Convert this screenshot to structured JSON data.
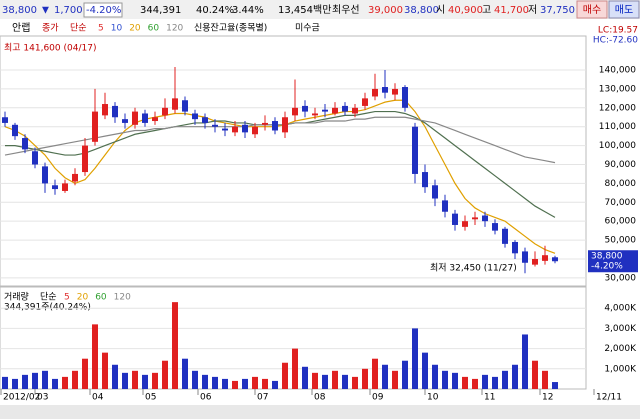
{
  "header": {
    "price": "38,800",
    "arrow": "▼",
    "change": "1,700",
    "change_pct": "-4.20%",
    "volume": "344,391",
    "vol_ratio": "40.24%",
    "turnover": "3.44%",
    "amount": "13,454백만",
    "best_label": "최우선",
    "best_ask": "39,000",
    "best_bid": "38,800",
    "open_label": "시",
    "open": "40,900",
    "high_label": "고",
    "high": "41,700",
    "low_label": "저",
    "low": "37,750",
    "buy": "매수",
    "sell": "매도"
  },
  "toolbar": {
    "name": "안랩",
    "price_type": "종가",
    "ma_type": "단순",
    "legend": [
      {
        "text": "5",
        "color": "#e03030"
      },
      {
        "text": "10",
        "color": "#3050d0"
      },
      {
        "text": "20",
        "color": "#e0a000"
      },
      {
        "text": "60",
        "color": "#30a030"
      },
      {
        "text": "120",
        "color": "#888888"
      }
    ],
    "credit": "신용잔고율(종목별)",
    "receivable": "미수금"
  },
  "chart_data": {
    "type": "candlestick",
    "annotations": {
      "high_note": "최고 141,600 (04/17)",
      "low_note": "최저 32,450 (11/27)",
      "lc": "LC:19.57",
      "hc": "HC:-72.60",
      "last_price": "38,800",
      "last_pct": "-4.20%"
    },
    "ylim": [
      25700,
      158000
    ],
    "yticks": [
      {
        "value": 30000,
        "label": "30,000"
      },
      {
        "value": 40000,
        "label": "40,000"
      },
      {
        "value": 50000,
        "label": "50,000"
      },
      {
        "value": 60000,
        "label": "60,000"
      },
      {
        "value": 70000,
        "label": "70,000"
      },
      {
        "value": 80000,
        "label": "80,000"
      },
      {
        "value": 90000,
        "label": "90,000"
      },
      {
        "value": 100000,
        "label": "100,000"
      },
      {
        "value": 110000,
        "label": "110,000"
      },
      {
        "value": 120000,
        "label": "120,000"
      },
      {
        "value": 130000,
        "label": "130,000"
      },
      {
        "value": 140000,
        "label": "140,000"
      }
    ],
    "open": [
      115000,
      111000,
      104000,
      97000,
      89000,
      79000,
      76000,
      81000,
      86000,
      102000,
      116000,
      121000,
      114000,
      111000,
      117000,
      113000,
      116000,
      119000,
      124000,
      117000,
      115000,
      111000,
      109000,
      107000,
      111000,
      106000,
      111000,
      113000,
      107000,
      116000,
      121000,
      116000,
      119000,
      117000,
      121000,
      117000,
      121000,
      126000,
      131000,
      127000,
      131000,
      110000,
      86000,
      79000,
      71000,
      64000,
      57000,
      61000,
      63000,
      59000,
      56000,
      49000,
      44000,
      37000,
      39000,
      40900
    ],
    "high": [
      118000,
      112000,
      106000,
      99000,
      91000,
      82000,
      82000,
      88000,
      104000,
      130000,
      128000,
      123000,
      117000,
      120000,
      119000,
      118000,
      125000,
      141600,
      126000,
      119000,
      117000,
      114000,
      112000,
      113000,
      113000,
      112000,
      116000,
      115000,
      118000,
      135000,
      124000,
      120000,
      122000,
      123000,
      123000,
      122000,
      128000,
      138000,
      140000,
      133000,
      132000,
      112000,
      90000,
      82000,
      74000,
      66000,
      63000,
      65000,
      65000,
      61000,
      57000,
      50000,
      46000,
      44000,
      47000,
      41700
    ],
    "low": [
      110000,
      103000,
      96000,
      88000,
      75000,
      74000,
      75000,
      79000,
      84000,
      100000,
      114000,
      112000,
      109000,
      109000,
      110000,
      111000,
      114000,
      117000,
      116000,
      111000,
      109000,
      107000,
      105000,
      105000,
      104000,
      104000,
      108000,
      106000,
      104000,
      113000,
      115000,
      114000,
      115000,
      116000,
      116000,
      115000,
      119000,
      124000,
      125000,
      124000,
      118000,
      80000,
      75000,
      68000,
      62000,
      55000,
      55000,
      58000,
      57000,
      53000,
      46000,
      40000,
      32450,
      36000,
      37000,
      37750
    ],
    "close": [
      112000,
      105000,
      98000,
      90000,
      80000,
      77000,
      80000,
      85000,
      100000,
      118000,
      122000,
      115000,
      112000,
      118000,
      112000,
      115000,
      120000,
      125000,
      118000,
      114000,
      112000,
      110000,
      108000,
      110000,
      107000,
      110000,
      112000,
      108000,
      115000,
      120000,
      118000,
      117000,
      118000,
      120000,
      118000,
      120000,
      125000,
      130000,
      128000,
      130000,
      120000,
      85000,
      78000,
      72000,
      65000,
      58000,
      60000,
      62000,
      60000,
      55000,
      48000,
      43000,
      38000,
      40000,
      42000,
      38800
    ],
    "up_color": "#e02020",
    "down_color": "#2030c0",
    "ma": [
      {
        "color": "#e0a000",
        "values": [
          110000,
          108000,
          105000,
          100000,
          95000,
          88000,
          83000,
          80000,
          82000,
          88000,
          95000,
          102000,
          108000,
          112000,
          114000,
          115000,
          116000,
          117000,
          117000,
          116000,
          115000,
          113000,
          112000,
          111000,
          110000,
          110000,
          110000,
          110000,
          111000,
          113000,
          114000,
          115000,
          116000,
          117000,
          118000,
          118000,
          119000,
          121000,
          123000,
          124000,
          124000,
          118000,
          110000,
          100000,
          90000,
          80000,
          72000,
          67000,
          64000,
          62000,
          60000,
          56000,
          52000,
          48000,
          45000,
          43000
        ]
      },
      {
        "color": "#507050",
        "values": [
          100000,
          100000,
          99000,
          98000,
          97000,
          96000,
          95000,
          95000,
          96000,
          98000,
          100000,
          102000,
          104000,
          106000,
          107000,
          108000,
          109000,
          110000,
          111000,
          112000,
          112000,
          113000,
          113000,
          112000,
          112000,
          111000,
          111000,
          111000,
          111000,
          112000,
          112000,
          113000,
          114000,
          115000,
          116000,
          116000,
          117000,
          118000,
          118000,
          118000,
          117000,
          115000,
          112000,
          108000,
          104000,
          100000,
          96000,
          92000,
          88000,
          84000,
          80000,
          76000,
          72000,
          68000,
          65000,
          62000
        ]
      },
      {
        "color": "#888888",
        "values": [
          95000,
          96000,
          97000,
          98000,
          99000,
          100000,
          101000,
          102000,
          103000,
          104000,
          105000,
          106000,
          107000,
          108000,
          108000,
          109000,
          109000,
          110000,
          110000,
          110000,
          110000,
          110000,
          110000,
          110000,
          110000,
          111000,
          111000,
          111000,
          111000,
          112000,
          112000,
          112000,
          113000,
          113000,
          113000,
          114000,
          114000,
          115000,
          115000,
          115000,
          115000,
          114000,
          113000,
          112000,
          110000,
          108000,
          106000,
          104000,
          102000,
          100000,
          98000,
          96000,
          94000,
          93000,
          92000,
          91000
        ]
      }
    ],
    "volume": {
      "title": "거래량",
      "ma_type": "단순",
      "legend": [
        {
          "text": "5",
          "color": "#e03030"
        },
        {
          "text": "20",
          "color": "#e0a000"
        },
        {
          "text": "60",
          "color": "#30a030"
        },
        {
          "text": "120",
          "color": "#888888"
        }
      ],
      "last": "344,391주(40.24%)",
      "ylim": [
        0,
        5050
      ],
      "yticks": [
        {
          "value": 1000,
          "label": "1,000K"
        },
        {
          "value": 2000,
          "label": "2,000K"
        },
        {
          "value": 3000,
          "label": "3,000K"
        },
        {
          "value": 4000,
          "label": "4,000K"
        }
      ],
      "values": [
        600,
        500,
        700,
        800,
        900,
        500,
        600,
        900,
        1500,
        3200,
        1800,
        1200,
        800,
        900,
        700,
        800,
        1400,
        4300,
        1500,
        900,
        700,
        600,
        500,
        400,
        500,
        600,
        500,
        400,
        1300,
        2000,
        1100,
        800,
        700,
        900,
        700,
        600,
        1000,
        1500,
        1200,
        900,
        1400,
        3000,
        1800,
        1200,
        900,
        800,
        600,
        500,
        700,
        600,
        900,
        1200,
        2700,
        1400,
        900,
        344
      ]
    },
    "x_labels": [
      "2012/02",
      "03",
      "04",
      "05",
      "06",
      "07",
      "08",
      "09",
      "10",
      "11",
      "12",
      "12/11"
    ]
  }
}
